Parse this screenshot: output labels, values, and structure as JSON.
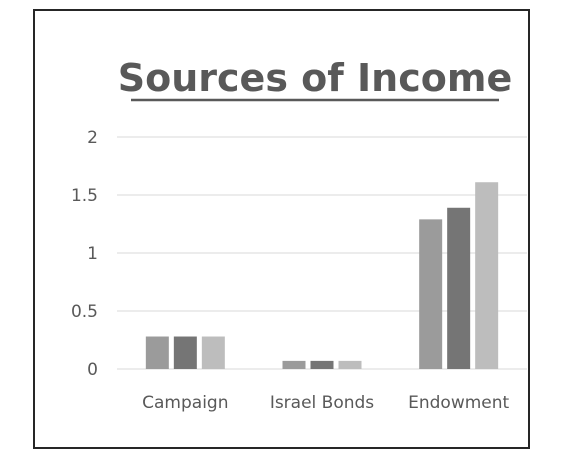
{
  "chart_data": {
    "type": "bar",
    "title": "Sources of Income",
    "categories": [
      "Campaign",
      "Israel Bonds",
      "Endowment"
    ],
    "series": [
      {
        "values": [
          0.28,
          0.07,
          1.29
        ],
        "color": "#9b9b9b"
      },
      {
        "values": [
          0.28,
          0.07,
          1.39
        ],
        "color": "#757575"
      },
      {
        "values": [
          0.28,
          0.07,
          1.61
        ],
        "color": "#bdbdbd"
      }
    ],
    "yticks": [
      "0",
      "0.5",
      "1",
      "1.5",
      "2"
    ],
    "ylim": [
      0,
      2
    ],
    "xlabel": "",
    "ylabel": "",
    "grid": true,
    "legend": "none"
  }
}
